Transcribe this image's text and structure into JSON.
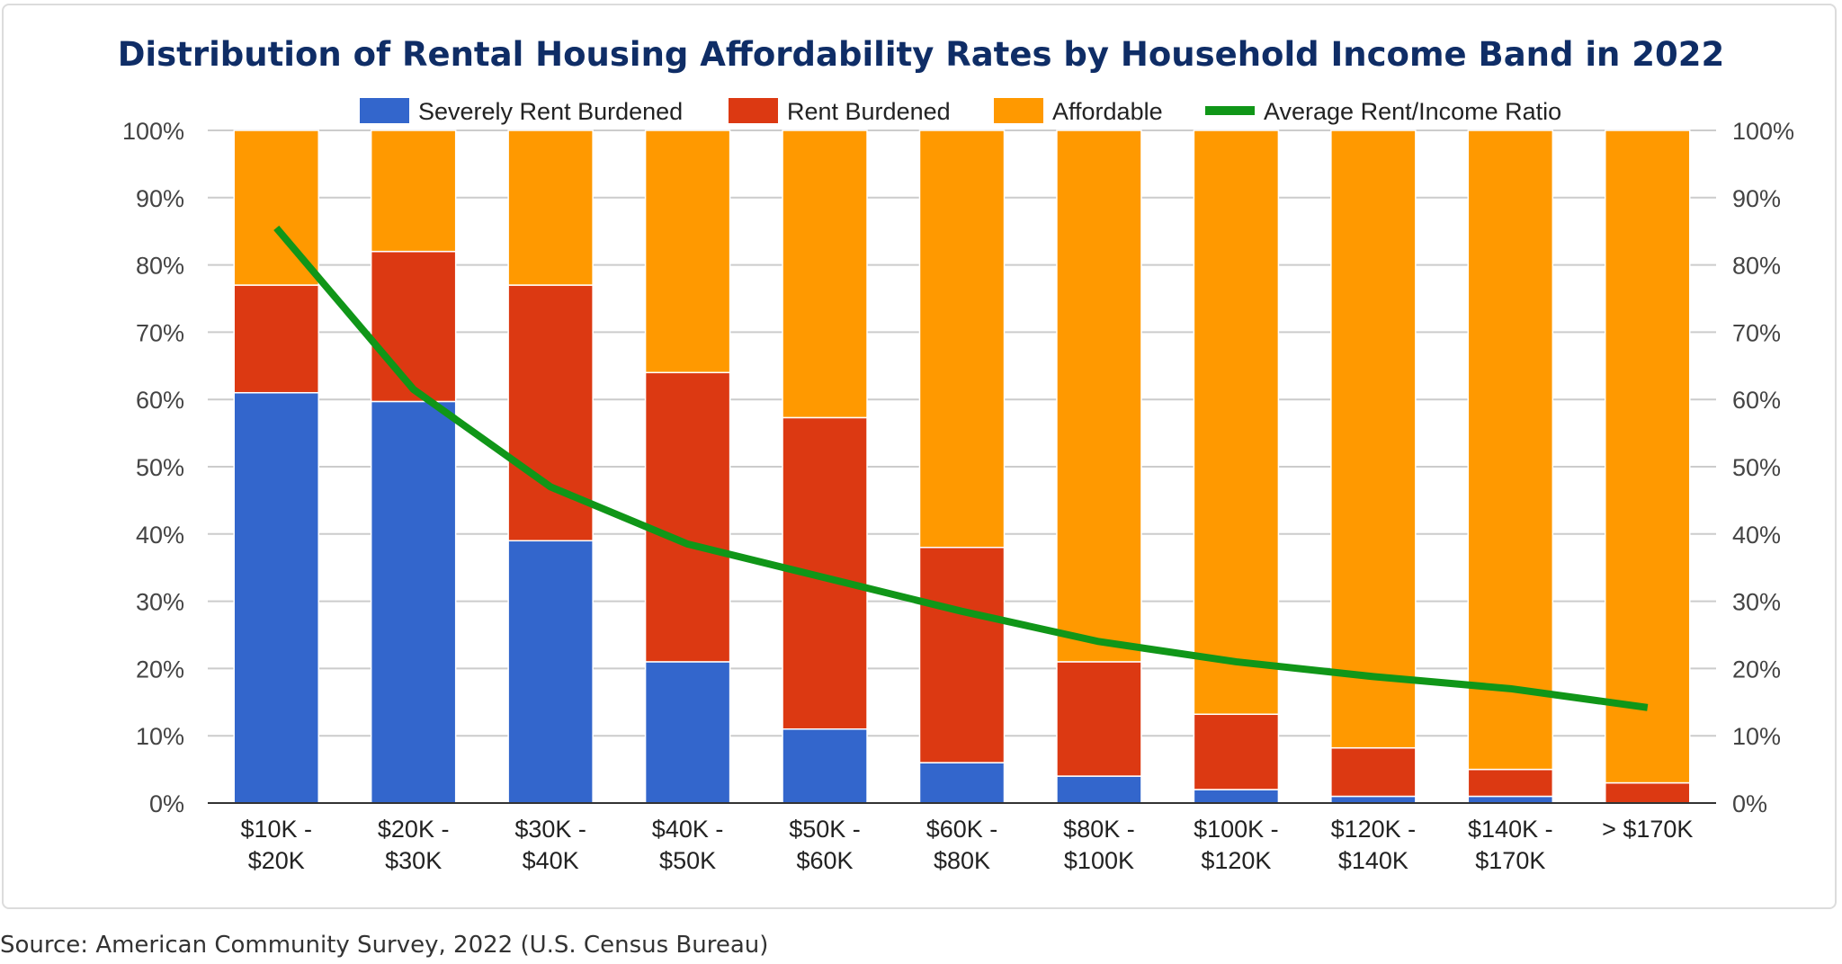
{
  "chart_data": {
    "type": "bar",
    "stacked": true,
    "title": "Distribution of Rental Housing Affordability Rates by Household Income Band in 2022",
    "categories": [
      [
        "$10K -",
        "$20K"
      ],
      [
        "$20K -",
        "$30K"
      ],
      [
        "$30K -",
        "$40K"
      ],
      [
        "$40K -",
        "$50K"
      ],
      [
        "$50K -",
        "$60K"
      ],
      [
        "$60K -",
        "$80K"
      ],
      [
        "$80K -",
        "$100K"
      ],
      [
        "$100K -",
        "$120K"
      ],
      [
        "$120K -",
        "$140K"
      ],
      [
        "$140K -",
        "$170K"
      ],
      [
        "> $170K"
      ]
    ],
    "series": [
      {
        "name": "Severely Rent Burdened",
        "type": "bar",
        "color": "#3366cc",
        "values": [
          61,
          59.7,
          39,
          21,
          11,
          6,
          4,
          2,
          1,
          1,
          0
        ]
      },
      {
        "name": "Rent Burdened",
        "type": "bar",
        "color": "#dc3912",
        "values": [
          16,
          22.3,
          38,
          43,
          46.3,
          32,
          17,
          11.2,
          7.2,
          4,
          3
        ]
      },
      {
        "name": "Affordable",
        "type": "bar",
        "color": "#ff9900",
        "values": [
          23,
          18,
          23,
          36,
          42.7,
          62,
          79,
          86.8,
          91.8,
          95,
          97
        ]
      },
      {
        "name": "Average Rent/Income Ratio",
        "type": "line",
        "color": "#109618",
        "values": [
          85.5,
          61.5,
          47,
          38.5,
          33.5,
          28.5,
          24,
          21,
          18.8,
          17,
          14.2
        ]
      }
    ],
    "ylim": [
      0,
      100
    ],
    "yticks": [
      "0%",
      "10%",
      "20%",
      "30%",
      "40%",
      "50%",
      "60%",
      "70%",
      "80%",
      "90%",
      "100%"
    ],
    "y2ticks": [
      "0%",
      "10%",
      "20%",
      "30%",
      "40%",
      "50%",
      "60%",
      "70%",
      "80%",
      "90%",
      "100%"
    ],
    "grid": true,
    "legend": "top"
  },
  "source": "Source: American Community Survey, 2022 (U.S. Census Bureau)"
}
